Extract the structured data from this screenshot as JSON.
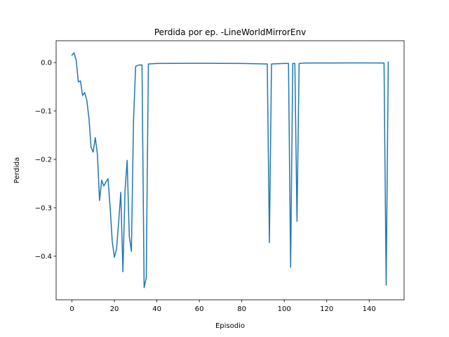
{
  "chart_data": {
    "type": "line",
    "title": "Perdida por ep. -LineWorldMirrorEnv",
    "xlabel": "Episodio",
    "ylabel": "Perdida",
    "xlim": [
      -7.45,
      156.45
    ],
    "ylim": [
      -0.49,
      0.045
    ],
    "xticks": [
      0,
      20,
      40,
      60,
      80,
      100,
      120,
      140
    ],
    "xtick_labels": [
      "0",
      "20",
      "40",
      "60",
      "80",
      "100",
      "120",
      "140"
    ],
    "yticks": [
      0.0,
      -0.1,
      -0.2,
      -0.3,
      -0.4
    ],
    "ytick_labels": [
      "0.0",
      "−0.1",
      "−0.2",
      "−0.3",
      "−0.4"
    ],
    "grid": false,
    "legend": "none",
    "series": [
      {
        "color": "#1f77b4",
        "x": [
          0,
          1,
          2,
          3,
          4,
          5,
          6,
          7,
          8,
          9,
          10,
          11,
          12,
          13,
          14,
          15,
          16,
          17,
          18,
          19,
          20,
          21,
          22,
          23,
          24,
          25,
          26,
          27,
          28,
          29,
          30,
          31,
          32,
          33,
          34,
          35,
          36,
          40,
          60,
          80,
          92,
          93,
          94,
          100,
          102,
          103,
          104,
          105,
          106,
          107,
          110,
          120,
          130,
          140,
          147,
          148,
          149
        ],
        "y": [
          0.015,
          0.02,
          0.005,
          -0.04,
          -0.038,
          -0.068,
          -0.062,
          -0.078,
          -0.115,
          -0.175,
          -0.185,
          -0.155,
          -0.19,
          -0.285,
          -0.243,
          -0.255,
          -0.247,
          -0.24,
          -0.3,
          -0.37,
          -0.402,
          -0.385,
          -0.33,
          -0.268,
          -0.432,
          -0.265,
          -0.202,
          -0.358,
          -0.39,
          -0.12,
          -0.008,
          -0.006,
          -0.005,
          -0.005,
          -0.465,
          -0.445,
          -0.003,
          -0.002,
          -0.0015,
          -0.002,
          -0.003,
          -0.372,
          -0.003,
          -0.002,
          -0.002,
          -0.423,
          -0.002,
          -0.002,
          -0.328,
          -0.002,
          -0.001,
          -0.001,
          -0.0008,
          -0.0008,
          -0.001,
          -0.46,
          0.001
        ]
      }
    ]
  }
}
